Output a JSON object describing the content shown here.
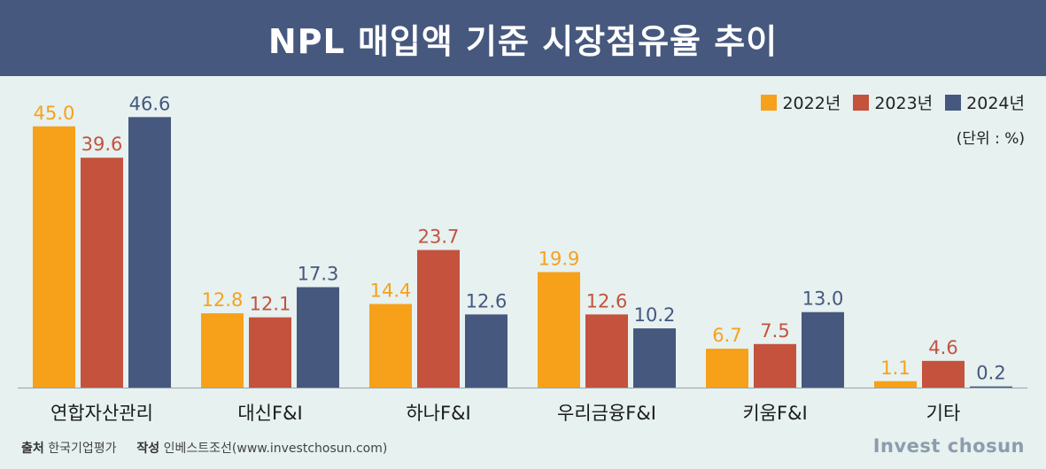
{
  "chart_data": {
    "type": "bar",
    "title": "NPL 매입액 기준 시장점유율 추이",
    "unit_note": "(단위 : %)",
    "categories": [
      "연합자산관리",
      "대신F&I",
      "하나F&I",
      "우리금융F&I",
      "키움F&I",
      "기타"
    ],
    "series": [
      {
        "name": "2022년",
        "color": "#f7a11a",
        "values": [
          45.0,
          12.8,
          14.4,
          19.9,
          6.7,
          1.1
        ]
      },
      {
        "name": "2023년",
        "color": "#c4523d",
        "values": [
          39.6,
          12.1,
          23.7,
          12.6,
          7.5,
          4.6
        ]
      },
      {
        "name": "2024년",
        "color": "#46587e",
        "values": [
          46.6,
          17.3,
          12.6,
          10.2,
          13.0,
          0.2
        ]
      }
    ],
    "ylim": [
      0,
      50
    ],
    "value_labels": [
      [
        "45.0",
        "12.8",
        "14.4",
        "19.9",
        "6.7",
        "1.1"
      ],
      [
        "39.6",
        "12.1",
        "23.7",
        "12.6",
        "7.5",
        "4.6"
      ],
      [
        "46.6",
        "17.3",
        "12.6",
        "10.2",
        "13.0",
        "0.2"
      ]
    ],
    "legend_position": "top-right",
    "grid": false
  },
  "footer": {
    "source_label": "출처",
    "source_value": "한국기업평가",
    "author_label": "작성",
    "author_value": "인베스트조선(www.investchosun.com)"
  },
  "brand": "Invest chosun"
}
